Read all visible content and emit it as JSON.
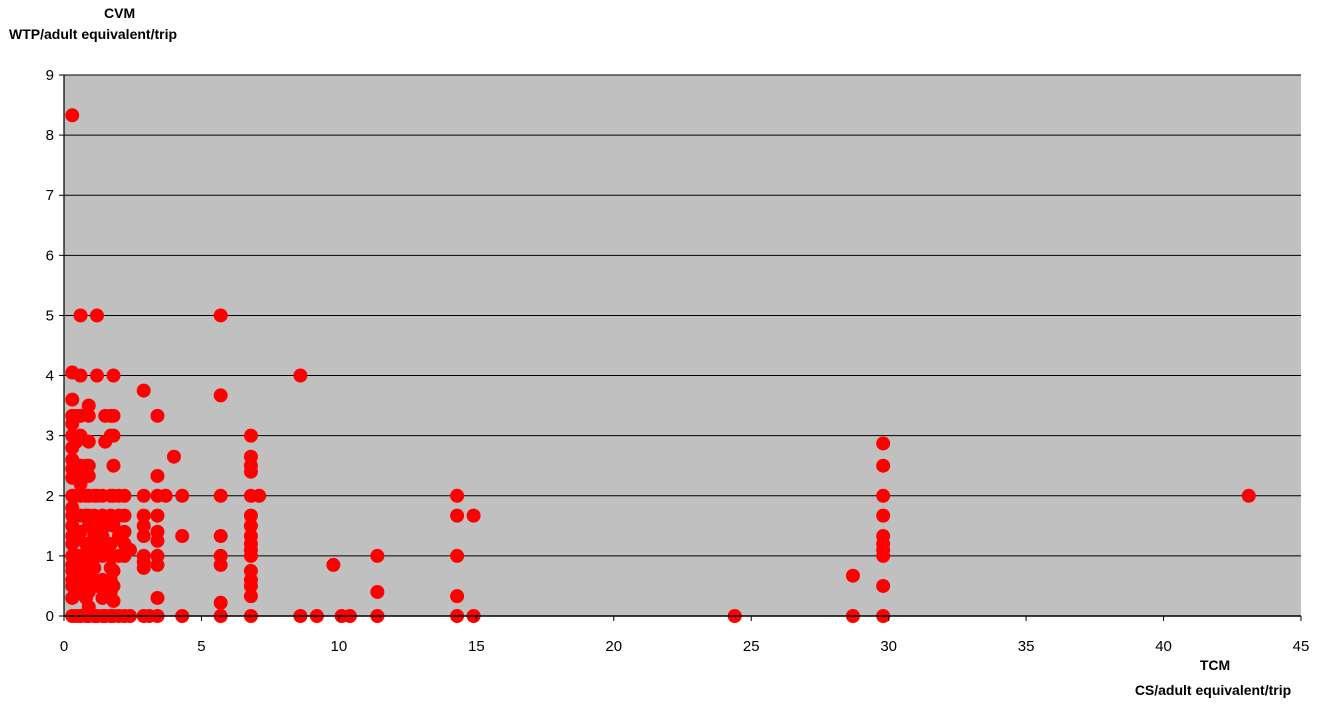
{
  "chart_data": {
    "type": "scatter",
    "ylabel_line1": "CVM",
    "ylabel_line2": "WTP/adult equivalent/trip",
    "xlabel_line1": "TCM",
    "xlabel_line2": "CS/adult equivalent/trip",
    "xlim": [
      0,
      45
    ],
    "ylim": [
      0,
      9
    ],
    "xticks": [
      "0",
      "5",
      "10",
      "15",
      "20",
      "25",
      "30",
      "35",
      "40",
      "45"
    ],
    "yticks": [
      "0",
      "1",
      "2",
      "3",
      "4",
      "5",
      "6",
      "7",
      "8",
      "9"
    ],
    "grid": "horizontal",
    "plot_background": "#c0c0c0",
    "marker_color": "#ff0000",
    "points": [
      [
        0.3,
        8.33
      ],
      [
        0.3,
        4.05
      ],
      [
        0.3,
        3.6
      ],
      [
        0.3,
        3.33
      ],
      [
        0.3,
        3.2
      ],
      [
        0.3,
        3.0
      ],
      [
        0.3,
        2.8
      ],
      [
        0.3,
        2.6
      ],
      [
        0.3,
        2.45
      ],
      [
        0.3,
        2.3
      ],
      [
        0.3,
        2.0
      ],
      [
        0.3,
        1.8
      ],
      [
        0.3,
        1.67
      ],
      [
        0.3,
        1.5
      ],
      [
        0.3,
        1.33
      ],
      [
        0.3,
        1.2
      ],
      [
        0.3,
        1.0
      ],
      [
        0.3,
        0.85
      ],
      [
        0.3,
        0.75
      ],
      [
        0.3,
        0.6
      ],
      [
        0.3,
        0.5
      ],
      [
        0.3,
        0.3
      ],
      [
        0.3,
        0.0
      ],
      [
        0.45,
        3.33
      ],
      [
        0.45,
        2.9
      ],
      [
        0.45,
        2.5
      ],
      [
        0.45,
        2.3
      ],
      [
        0.45,
        2.0
      ],
      [
        0.45,
        1.67
      ],
      [
        0.45,
        1.3
      ],
      [
        0.45,
        1.0
      ],
      [
        0.45,
        0.8
      ],
      [
        0.45,
        0.6
      ],
      [
        0.45,
        0.4
      ],
      [
        0.45,
        0.0
      ],
      [
        0.6,
        5.0
      ],
      [
        0.6,
        4.0
      ],
      [
        0.6,
        3.33
      ],
      [
        0.6,
        3.0
      ],
      [
        0.6,
        2.5
      ],
      [
        0.6,
        2.2
      ],
      [
        0.6,
        2.0
      ],
      [
        0.6,
        1.67
      ],
      [
        0.6,
        1.4
      ],
      [
        0.6,
        1.0
      ],
      [
        0.6,
        0.8
      ],
      [
        0.6,
        0.5
      ],
      [
        0.6,
        0.0
      ],
      [
        0.8,
        2.5
      ],
      [
        0.8,
        2.33
      ],
      [
        0.8,
        2.0
      ],
      [
        0.8,
        1.67
      ],
      [
        0.8,
        1.2
      ],
      [
        0.8,
        1.0
      ],
      [
        0.8,
        0.9
      ],
      [
        0.8,
        0.6
      ],
      [
        0.8,
        0.3
      ],
      [
        0.8,
        0.0
      ],
      [
        0.9,
        3.5
      ],
      [
        0.9,
        3.33
      ],
      [
        0.9,
        2.9
      ],
      [
        0.9,
        2.5
      ],
      [
        0.9,
        2.33
      ],
      [
        0.9,
        2.0
      ],
      [
        0.9,
        1.67
      ],
      [
        0.9,
        1.5
      ],
      [
        0.9,
        1.0
      ],
      [
        0.9,
        0.7
      ],
      [
        0.9,
        0.4
      ],
      [
        0.9,
        0.15
      ],
      [
        0.9,
        0.0
      ],
      [
        1.1,
        2.0
      ],
      [
        1.1,
        1.67
      ],
      [
        1.1,
        1.5
      ],
      [
        1.1,
        1.33
      ],
      [
        1.1,
        1.1
      ],
      [
        1.1,
        1.0
      ],
      [
        1.1,
        0.8
      ],
      [
        1.1,
        0.6
      ],
      [
        1.1,
        0.0
      ],
      [
        1.2,
        5.0
      ],
      [
        1.2,
        4.0
      ],
      [
        1.2,
        2.0
      ],
      [
        1.2,
        1.5
      ],
      [
        1.2,
        1.2
      ],
      [
        1.2,
        1.0
      ],
      [
        1.2,
        0.5
      ],
      [
        1.2,
        0.0
      ],
      [
        1.4,
        2.0
      ],
      [
        1.4,
        1.67
      ],
      [
        1.4,
        1.33
      ],
      [
        1.4,
        1.0
      ],
      [
        1.4,
        0.6
      ],
      [
        1.4,
        0.3
      ],
      [
        1.4,
        0.0
      ],
      [
        1.5,
        3.33
      ],
      [
        1.5,
        2.9
      ],
      [
        1.5,
        1.5
      ],
      [
        1.5,
        1.1
      ],
      [
        1.5,
        0.5
      ],
      [
        1.5,
        0.0
      ],
      [
        1.7,
        3.33
      ],
      [
        1.7,
        3.0
      ],
      [
        1.7,
        2.0
      ],
      [
        1.7,
        1.67
      ],
      [
        1.7,
        1.2
      ],
      [
        1.7,
        1.0
      ],
      [
        1.7,
        0.8
      ],
      [
        1.7,
        0.6
      ],
      [
        1.7,
        0.4
      ],
      [
        1.7,
        0.0
      ],
      [
        1.8,
        4.0
      ],
      [
        1.8,
        3.33
      ],
      [
        1.8,
        3.0
      ],
      [
        1.8,
        2.5
      ],
      [
        1.8,
        2.0
      ],
      [
        1.8,
        1.5
      ],
      [
        1.8,
        1.0
      ],
      [
        1.8,
        0.75
      ],
      [
        1.8,
        0.5
      ],
      [
        1.8,
        0.25
      ],
      [
        1.8,
        0.0
      ],
      [
        2.0,
        2.0
      ],
      [
        2.0,
        1.67
      ],
      [
        2.0,
        1.33
      ],
      [
        2.0,
        1.0
      ],
      [
        2.0,
        0.0
      ],
      [
        2.2,
        2.0
      ],
      [
        2.2,
        1.67
      ],
      [
        2.2,
        1.4
      ],
      [
        2.2,
        1.2
      ],
      [
        2.2,
        1.0
      ],
      [
        2.2,
        0.0
      ],
      [
        2.4,
        1.1
      ],
      [
        2.4,
        0.0
      ],
      [
        2.9,
        3.75
      ],
      [
        2.9,
        2.0
      ],
      [
        2.9,
        1.67
      ],
      [
        2.9,
        1.5
      ],
      [
        2.9,
        1.33
      ],
      [
        2.9,
        1.0
      ],
      [
        2.9,
        0.9
      ],
      [
        2.9,
        0.8
      ],
      [
        2.9,
        0.0
      ],
      [
        3.1,
        0.0
      ],
      [
        3.4,
        3.33
      ],
      [
        3.4,
        2.33
      ],
      [
        3.4,
        2.0
      ],
      [
        3.4,
        1.67
      ],
      [
        3.4,
        1.4
      ],
      [
        3.4,
        1.25
      ],
      [
        3.4,
        1.0
      ],
      [
        3.4,
        0.85
      ],
      [
        3.4,
        0.3
      ],
      [
        3.4,
        0.0
      ],
      [
        3.7,
        2.0
      ],
      [
        4.0,
        2.65
      ],
      [
        4.3,
        2.0
      ],
      [
        4.3,
        1.33
      ],
      [
        4.3,
        0.0
      ],
      [
        5.7,
        5.0
      ],
      [
        5.7,
        3.67
      ],
      [
        5.7,
        2.0
      ],
      [
        5.7,
        1.33
      ],
      [
        5.7,
        1.0
      ],
      [
        5.7,
        0.85
      ],
      [
        5.7,
        0.22
      ],
      [
        5.7,
        0.0
      ],
      [
        6.8,
        3.0
      ],
      [
        6.8,
        2.65
      ],
      [
        6.8,
        2.5
      ],
      [
        6.8,
        2.4
      ],
      [
        6.8,
        2.0
      ],
      [
        6.8,
        1.67
      ],
      [
        6.8,
        1.5
      ],
      [
        6.8,
        1.33
      ],
      [
        6.8,
        1.2
      ],
      [
        6.8,
        1.1
      ],
      [
        6.8,
        1.0
      ],
      [
        6.8,
        0.75
      ],
      [
        6.8,
        0.6
      ],
      [
        6.8,
        0.5
      ],
      [
        6.8,
        0.33
      ],
      [
        6.8,
        0.0
      ],
      [
        7.1,
        2.0
      ],
      [
        8.6,
        4.0
      ],
      [
        8.6,
        0.0
      ],
      [
        9.2,
        0.0
      ],
      [
        9.8,
        0.85
      ],
      [
        10.1,
        0.0
      ],
      [
        10.4,
        0.0
      ],
      [
        11.4,
        1.0
      ],
      [
        11.4,
        0.4
      ],
      [
        11.4,
        0.0
      ],
      [
        14.3,
        2.0
      ],
      [
        14.3,
        1.67
      ],
      [
        14.3,
        1.0
      ],
      [
        14.3,
        0.33
      ],
      [
        14.3,
        0.0
      ],
      [
        14.9,
        1.67
      ],
      [
        14.9,
        0.0
      ],
      [
        24.4,
        0.0
      ],
      [
        28.7,
        0.67
      ],
      [
        28.7,
        0.0
      ],
      [
        29.8,
        2.87
      ],
      [
        29.8,
        2.5
      ],
      [
        29.8,
        2.0
      ],
      [
        29.8,
        1.67
      ],
      [
        29.8,
        1.33
      ],
      [
        29.8,
        1.2
      ],
      [
        29.8,
        1.1
      ],
      [
        29.8,
        1.0
      ],
      [
        29.8,
        0.5
      ],
      [
        29.8,
        0.0
      ],
      [
        43.1,
        2.0
      ]
    ]
  }
}
